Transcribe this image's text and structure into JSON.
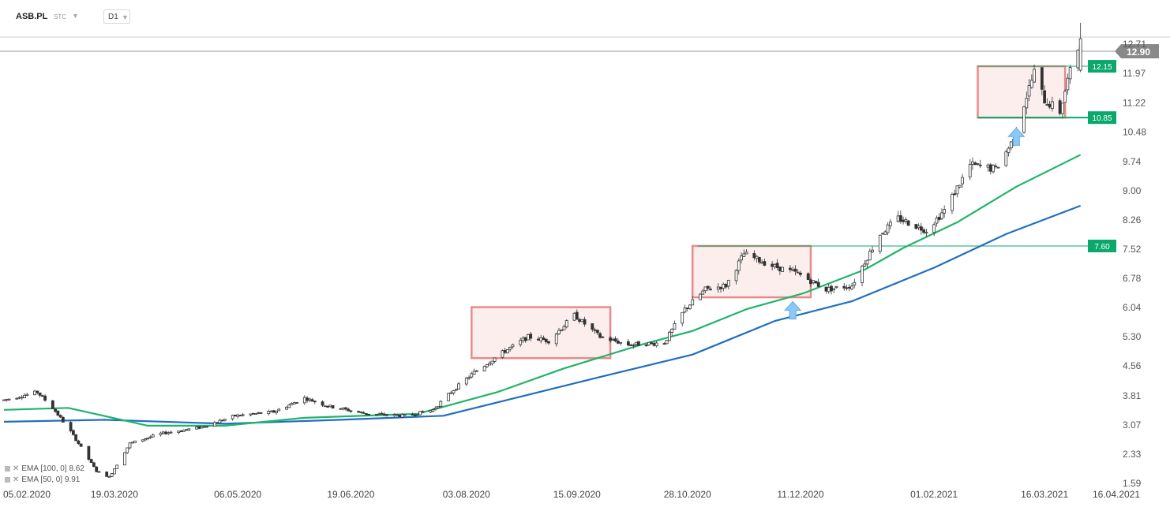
{
  "header": {
    "symbol": "ASB.PL",
    "badge": "STC",
    "interval": "D1"
  },
  "indicators": [
    {
      "label": "EMA [100, 0]",
      "value": "8.62",
      "color": "#1f6fbf"
    },
    {
      "label": "EMA [50, 0]",
      "value": "9.91",
      "color": "#21b36b"
    }
  ],
  "colors": {
    "ema100": "#1f6fbf",
    "ema50": "#21b36b",
    "level": "#0aa86b",
    "box_stroke": "#e88a8a",
    "box_fill": "#fdeeee",
    "arrow": "#8cc8f5",
    "candle": "#333333",
    "last_price_bg": "#888888"
  },
  "chart_data": {
    "type": "candlestick",
    "y_axis_ticks": [
      "12.71",
      "11.97",
      "11.22",
      "10.48",
      "9.74",
      "9.00",
      "8.26",
      "7.52",
      "6.78",
      "6.04",
      "5.30",
      "4.56",
      "3.81",
      "3.07",
      "2.33",
      "1.59"
    ],
    "x_axis_ticks": [
      "05.02.2020",
      "19.03.2020",
      "06.05.2020",
      "19.06.2020",
      "03.08.2020",
      "15.09.2020",
      "28.10.2020",
      "11.12.2020",
      "01.02.2021",
      "16.03.2021",
      "16.04.2021"
    ],
    "last_price": "12.90",
    "levels": [
      {
        "label": "12.15",
        "value": 12.15
      },
      {
        "label": "10.85",
        "value": 10.85
      },
      {
        "label": "7.60",
        "value": 7.6
      }
    ],
    "ranges": [
      {
        "from": "2020-08-05",
        "to": "2020-09-28",
        "low": 4.76,
        "high": 6.05
      },
      {
        "from": "2020-10-30",
        "to": "2020-12-15",
        "low": 6.3,
        "high": 7.6
      },
      {
        "from": "2021-02-18",
        "to": "2021-03-24",
        "low": 10.85,
        "high": 12.15
      }
    ],
    "arrows": [
      {
        "date": "2020-12-08",
        "value": 5.95
      },
      {
        "date": "2021-03-05",
        "value": 10.35
      }
    ],
    "price_path": [
      [
        "2020-02-05",
        3.7
      ],
      [
        "2020-02-18",
        3.9
      ],
      [
        "2020-02-24",
        3.5
      ],
      [
        "2020-03-02",
        2.9
      ],
      [
        "2020-03-12",
        1.9
      ],
      [
        "2020-03-17",
        1.75
      ],
      [
        "2020-03-25",
        2.6
      ],
      [
        "2020-04-06",
        2.85
      ],
      [
        "2020-04-21",
        3.0
      ],
      [
        "2020-05-05",
        3.3
      ],
      [
        "2020-05-20",
        3.4
      ],
      [
        "2020-06-01",
        3.75
      ],
      [
        "2020-06-10",
        3.55
      ],
      [
        "2020-06-25",
        3.35
      ],
      [
        "2020-07-10",
        3.3
      ],
      [
        "2020-07-21",
        3.45
      ],
      [
        "2020-07-28",
        3.9
      ],
      [
        "2020-08-06",
        4.4
      ],
      [
        "2020-08-17",
        4.9
      ],
      [
        "2020-08-27",
        5.3
      ],
      [
        "2020-09-04",
        5.2
      ],
      [
        "2020-09-14",
        5.85
      ],
      [
        "2020-09-24",
        5.3
      ],
      [
        "2020-10-05",
        5.1
      ],
      [
        "2020-10-19",
        5.15
      ],
      [
        "2020-10-27",
        6.0
      ],
      [
        "2020-11-04",
        6.5
      ],
      [
        "2020-11-12",
        6.6
      ],
      [
        "2020-11-19",
        7.4
      ],
      [
        "2020-11-30",
        7.1
      ],
      [
        "2020-12-10",
        6.9
      ],
      [
        "2020-12-21",
        6.5
      ],
      [
        "2020-12-31",
        6.6
      ],
      [
        "2021-01-05",
        7.2
      ],
      [
        "2021-01-11",
        7.9
      ],
      [
        "2021-01-18",
        8.3
      ],
      [
        "2021-01-29",
        8.0
      ],
      [
        "2021-02-05",
        8.5
      ],
      [
        "2021-02-15",
        9.65
      ],
      [
        "2021-02-25",
        9.55
      ],
      [
        "2021-03-03",
        10.2
      ],
      [
        "2021-03-08",
        11.2
      ],
      [
        "2021-03-12",
        12.0
      ],
      [
        "2021-03-16",
        11.3
      ],
      [
        "2021-03-22",
        11.0
      ],
      [
        "2021-03-25",
        11.8
      ],
      [
        "2021-03-30",
        12.8
      ]
    ],
    "ema50_path": [
      [
        "2020-02-05",
        3.45
      ],
      [
        "2020-03-01",
        3.5
      ],
      [
        "2020-04-01",
        3.05
      ],
      [
        "2020-05-01",
        3.05
      ],
      [
        "2020-06-01",
        3.25
      ],
      [
        "2020-07-15",
        3.35
      ],
      [
        "2020-08-15",
        3.9
      ],
      [
        "2020-09-10",
        4.5
      ],
      [
        "2020-10-10",
        5.1
      ],
      [
        "2020-10-30",
        5.45
      ],
      [
        "2020-11-20",
        6.0
      ],
      [
        "2020-12-12",
        6.4
      ],
      [
        "2021-01-05",
        7.0
      ],
      [
        "2021-01-20",
        7.55
      ],
      [
        "2021-02-10",
        8.2
      ],
      [
        "2021-03-05",
        9.1
      ],
      [
        "2021-03-30",
        9.91
      ]
    ],
    "ema100_path": [
      [
        "2020-02-05",
        3.15
      ],
      [
        "2020-03-15",
        3.2
      ],
      [
        "2020-05-01",
        3.1
      ],
      [
        "2020-06-15",
        3.2
      ],
      [
        "2020-07-25",
        3.3
      ],
      [
        "2020-08-25",
        3.8
      ],
      [
        "2020-09-25",
        4.3
      ],
      [
        "2020-10-30",
        4.85
      ],
      [
        "2020-12-01",
        5.7
      ],
      [
        "2020-12-31",
        6.2
      ],
      [
        "2021-02-01",
        7.05
      ],
      [
        "2021-03-01",
        7.9
      ],
      [
        "2021-03-30",
        8.62
      ]
    ]
  }
}
